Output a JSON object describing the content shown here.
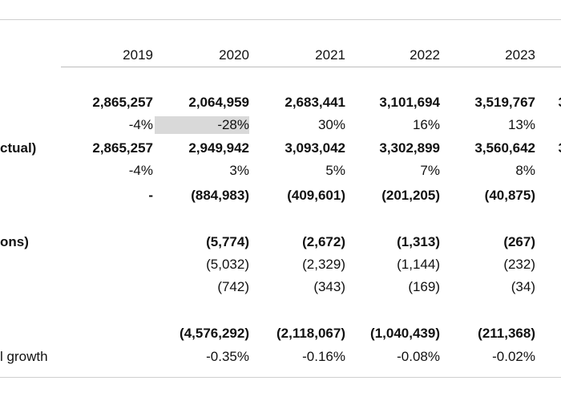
{
  "years": [
    "2019",
    "2020",
    "2021",
    "2022",
    "2023",
    ""
  ],
  "rows": [
    {
      "label": "",
      "bold": true,
      "values": [
        "2,865,257",
        "2,064,959",
        "2,683,441",
        "3,101,694",
        "3,519,767",
        "3"
      ]
    },
    {
      "label": "",
      "bold": false,
      "values": [
        "-4%",
        "-28%",
        "30%",
        "16%",
        "13%",
        ""
      ]
    },
    {
      "label": "ctual)",
      "bold": true,
      "values": [
        "2,865,257",
        "2,949,942",
        "3,093,042",
        "3,302,899",
        "3,560,642",
        "3"
      ]
    },
    {
      "label": "",
      "bold": false,
      "values": [
        "-4%",
        "3%",
        "5%",
        "7%",
        "8%",
        ""
      ]
    },
    {
      "label": "",
      "bold": true,
      "values": [
        "-",
        "(884,983)",
        "(409,601)",
        "(201,205)",
        "(40,875)",
        ""
      ]
    },
    {
      "label": "ons)",
      "bold": true,
      "values": [
        "",
        "(5,774)",
        "(2,672)",
        "(1,313)",
        "(267)",
        ""
      ]
    },
    {
      "label": "",
      "bold": false,
      "values": [
        "",
        "(5,032)",
        "(2,329)",
        "(1,144)",
        "(232)",
        ""
      ]
    },
    {
      "label": "",
      "bold": false,
      "values": [
        "",
        "(742)",
        "(343)",
        "(169)",
        "(34)",
        ""
      ]
    },
    {
      "label": "",
      "bold": true,
      "values": [
        "",
        "(4,576,292)",
        "(2,118,067)",
        "(1,040,439)",
        "(211,368)",
        ""
      ]
    },
    {
      "label": "l growth",
      "bold": false,
      "values": [
        "",
        "-0.35%",
        "-0.16%",
        "-0.08%",
        "-0.02%",
        ""
      ]
    }
  ],
  "highlight": {
    "row": 1,
    "col": 1,
    "color": "#d9d9d9"
  }
}
